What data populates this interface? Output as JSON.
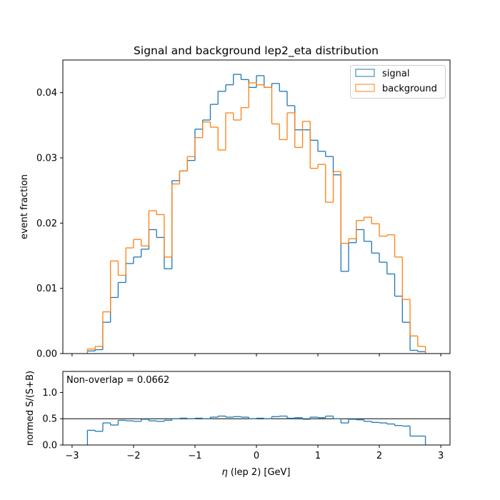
{
  "chart_data": [
    {
      "type": "step",
      "title": "Signal and background lep2_eta distribution",
      "xlabel": "",
      "ylabel": "event fraction",
      "xlim": [
        -3.15,
        3.15
      ],
      "ylim": [
        0,
        0.045
      ],
      "xticks": [
        -3,
        -2,
        -1,
        0,
        1,
        2,
        3
      ],
      "yticks": [
        0.0,
        0.01,
        0.02,
        0.03,
        0.04
      ],
      "ytick_labels": [
        "0.00",
        "0.01",
        "0.02",
        "0.03",
        "0.04"
      ],
      "legend_position": "top-right",
      "bin_edges": [
        -2.75,
        -2.625,
        -2.5,
        -2.375,
        -2.25,
        -2.125,
        -2.0,
        -1.875,
        -1.75,
        -1.625,
        -1.5,
        -1.375,
        -1.25,
        -1.125,
        -1.0,
        -0.875,
        -0.75,
        -0.625,
        -0.5,
        -0.375,
        -0.25,
        -0.125,
        0.0,
        0.125,
        0.25,
        0.375,
        0.5,
        0.625,
        0.75,
        0.875,
        1.0,
        1.125,
        1.25,
        1.375,
        1.5,
        1.625,
        1.75,
        1.875,
        2.0,
        2.125,
        2.25,
        2.375,
        2.5,
        2.625,
        2.75
      ],
      "series": [
        {
          "name": "signal",
          "color": "#1f77b4",
          "values": [
            0.0004,
            0.0006,
            0.0048,
            0.0086,
            0.0109,
            0.0138,
            0.0148,
            0.016,
            0.019,
            0.0178,
            0.013,
            0.0265,
            0.028,
            0.0296,
            0.0344,
            0.0358,
            0.0382,
            0.0402,
            0.0412,
            0.0428,
            0.042,
            0.0408,
            0.0426,
            0.0408,
            0.0414,
            0.0402,
            0.038,
            0.0343,
            0.0343,
            0.0327,
            0.031,
            0.0302,
            0.0274,
            0.0126,
            0.017,
            0.019,
            0.0172,
            0.0154,
            0.014,
            0.0122,
            0.0088,
            0.0048,
            0.0005,
            0.0003
          ]
        },
        {
          "name": "background",
          "color": "#ff7f0e",
          "values": [
            0.0007,
            0.0011,
            0.0064,
            0.0142,
            0.012,
            0.0162,
            0.0175,
            0.0165,
            0.0219,
            0.0213,
            0.0148,
            0.026,
            0.028,
            0.0302,
            0.0331,
            0.0355,
            0.0347,
            0.0312,
            0.0369,
            0.0358,
            0.0377,
            0.0415,
            0.0412,
            0.0408,
            0.0352,
            0.0328,
            0.0369,
            0.0316,
            0.0356,
            0.0284,
            0.029,
            0.0232,
            0.0279,
            0.0169,
            0.0176,
            0.0204,
            0.0209,
            0.0199,
            0.018,
            0.0182,
            0.0148,
            0.0083,
            0.0027,
            0.0011
          ]
        }
      ]
    },
    {
      "type": "step",
      "annotation": "Non-overlap = 0.0662",
      "xlabel": "$\\eta$ (lep 2) [GeV]",
      "xlabel_eta": "η",
      "xlabel_rest": " (lep 2) [GeV]",
      "ylabel": "normed S/(S+B)",
      "xlim": [
        -3.15,
        3.15
      ],
      "ylim": [
        0,
        1.4
      ],
      "xticks": [
        -3,
        -2,
        -1,
        0,
        1,
        2,
        3
      ],
      "xtick_labels": [
        "−3",
        "−2",
        "−1",
        "0",
        "1",
        "2",
        "3"
      ],
      "yticks": [
        0.0,
        0.5,
        1.0
      ],
      "ytick_labels": [
        "0.0",
        "0.5",
        "1.0"
      ],
      "hline": 0.5,
      "bin_edges": [
        -2.75,
        -2.625,
        -2.5,
        -2.375,
        -2.25,
        -2.125,
        -2.0,
        -1.875,
        -1.75,
        -1.625,
        -1.5,
        -1.375,
        -1.25,
        -1.125,
        -1.0,
        -0.875,
        -0.75,
        -0.625,
        -0.5,
        -0.375,
        -0.25,
        -0.125,
        0.0,
        0.125,
        0.25,
        0.375,
        0.5,
        0.625,
        0.75,
        0.875,
        1.0,
        1.125,
        1.25,
        1.375,
        1.5,
        1.625,
        1.75,
        1.875,
        2.0,
        2.125,
        2.25,
        2.375,
        2.5,
        2.625,
        2.75
      ],
      "series": [
        {
          "name": "normed S/(S+B)",
          "color": "#1f77b4",
          "values": [
            0.28,
            0.26,
            0.42,
            0.38,
            0.47,
            0.46,
            0.45,
            0.49,
            0.46,
            0.45,
            0.47,
            0.5,
            0.51,
            0.5,
            0.51,
            0.5,
            0.53,
            0.55,
            0.53,
            0.54,
            0.53,
            0.5,
            0.51,
            0.5,
            0.54,
            0.55,
            0.51,
            0.52,
            0.49,
            0.53,
            0.52,
            0.55,
            0.5,
            0.42,
            0.49,
            0.48,
            0.45,
            0.43,
            0.42,
            0.4,
            0.37,
            0.36,
            0.17,
            0.17
          ]
        }
      ]
    }
  ]
}
